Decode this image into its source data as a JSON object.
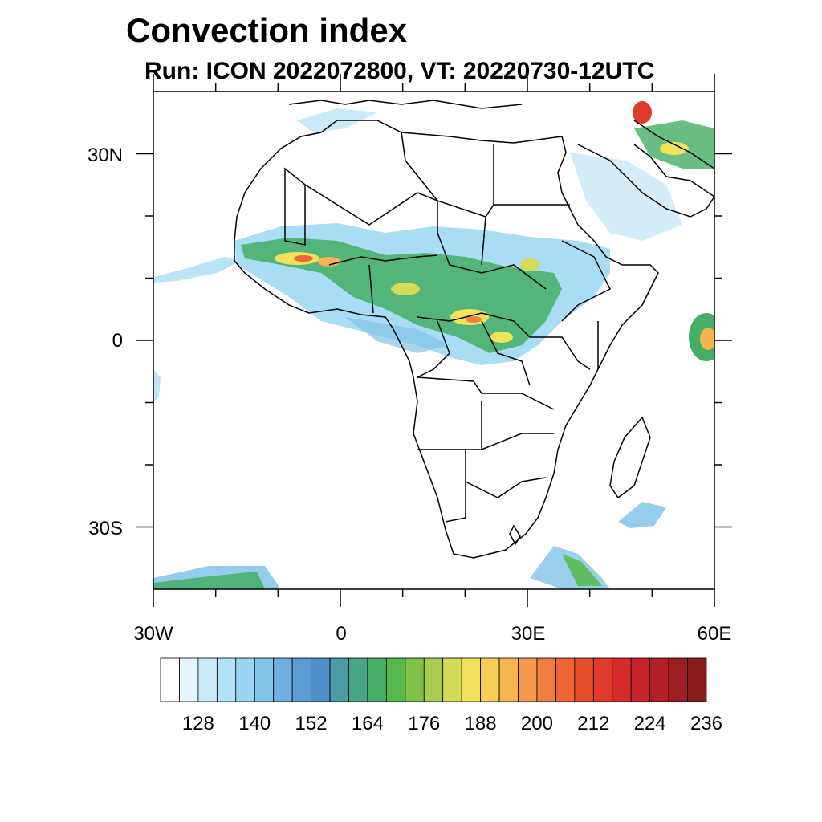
{
  "title": "Convection index",
  "subtitle": "Run: ICON 2022072800,  VT: 20220730-12UTC",
  "map": {
    "lon_range": [
      -30,
      60
    ],
    "lat_range": [
      -40,
      40
    ],
    "lat_labels": [
      "30N",
      "0",
      "30S"
    ],
    "lon_labels": [
      "30W",
      "0",
      "30E",
      "60E"
    ]
  },
  "colorbar": {
    "colors": [
      "#ffffff",
      "#e6f4fb",
      "#cbe9f6",
      "#b3e1f6",
      "#9ad6f3",
      "#82c3ea",
      "#6db0e2",
      "#5a9bd6",
      "#4d8fc8",
      "#4a9ba6",
      "#47a583",
      "#45ae64",
      "#55b84a",
      "#7fc14a",
      "#a8cc4c",
      "#d2dc56",
      "#f0e25a",
      "#f7cf56",
      "#f6b450",
      "#f4984a",
      "#f07f3f",
      "#ec6733",
      "#e64f2c",
      "#e03a2b",
      "#d62a2b",
      "#c7232b",
      "#b21f27",
      "#9f1c22",
      "#8b1a1c"
    ],
    "labels": [
      "128",
      "140",
      "152",
      "164",
      "176",
      "188",
      "200",
      "212",
      "224",
      "236"
    ]
  }
}
